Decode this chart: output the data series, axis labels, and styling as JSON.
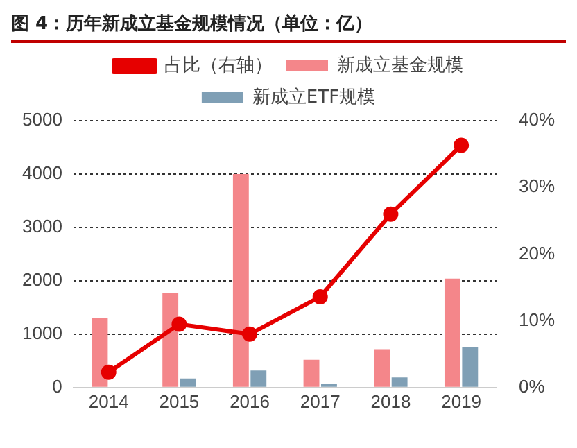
{
  "chart_data": {
    "type": "bar",
    "title": "图 4：历年新成立基金规模情况（单位：亿）",
    "categories": [
      "2014",
      "2015",
      "2016",
      "2017",
      "2018",
      "2019"
    ],
    "series": [
      {
        "name": "新成立基金规模",
        "color": "#f4868a",
        "values": [
          1300,
          1770,
          4000,
          520,
          720,
          2040
        ]
      },
      {
        "name": "新成立ETF规模",
        "color": "#7f9fb5",
        "values": [
          0,
          170,
          320,
          70,
          190,
          750
        ]
      },
      {
        "name": "占比（右轴）",
        "type": "line",
        "axis": "y2",
        "color": "#e60000",
        "values": [
          2.3,
          9.5,
          8.0,
          13.6,
          26,
          36.3
        ]
      }
    ],
    "ylim": [
      0,
      5000
    ],
    "yticks": [
      0,
      1000,
      2000,
      3000,
      4000,
      5000
    ],
    "y2lim": [
      0,
      40
    ],
    "y2ticks": [
      {
        "value": 0,
        "label": "0%"
      },
      {
        "value": 10,
        "label": "10%"
      },
      {
        "value": 20,
        "label": "20%"
      },
      {
        "value": 30,
        "label": "30%"
      },
      {
        "value": 40,
        "label": "40%"
      }
    ],
    "grid": "y",
    "legend": "top",
    "marker": "circle"
  }
}
